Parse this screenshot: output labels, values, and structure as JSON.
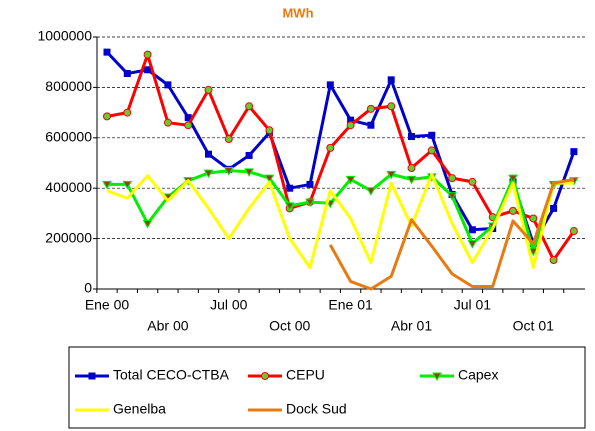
{
  "chart_data": {
    "type": "line",
    "subtitle": "MWh",
    "categories": [
      "Ene 00",
      null,
      null,
      "Abr 00",
      null,
      null,
      "Jul 00",
      null,
      null,
      "Oct 00",
      null,
      null,
      "Ene 01",
      null,
      null,
      "Abr 01",
      null,
      null,
      "Jul 01",
      null,
      null,
      "Oct 01",
      null,
      null
    ],
    "series": [
      {
        "name": "Total CECO-CTBA",
        "color": "#0000cc",
        "marker": "square",
        "values": [
          940000,
          855000,
          870000,
          810000,
          680000,
          535000,
          475000,
          530000,
          620000,
          400000,
          415000,
          810000,
          670000,
          650000,
          830000,
          605000,
          610000,
          375000,
          235000,
          240000,
          425000,
          180000,
          320000,
          545000
        ]
      },
      {
        "name": "CEPU",
        "color": "#ff0000",
        "marker": "circle",
        "values": [
          685000,
          700000,
          930000,
          660000,
          650000,
          790000,
          595000,
          725000,
          630000,
          320000,
          345000,
          560000,
          650000,
          715000,
          725000,
          480000,
          550000,
          440000,
          425000,
          285000,
          310000,
          280000,
          115000,
          230000
        ]
      },
      {
        "name": "Capex",
        "color": "#00ee00",
        "marker": "triangle",
        "values": [
          415000,
          415000,
          260000,
          365000,
          430000,
          460000,
          470000,
          465000,
          440000,
          330000,
          345000,
          340000,
          435000,
          390000,
          455000,
          435000,
          445000,
          370000,
          180000,
          250000,
          440000,
          150000,
          415000,
          430000
        ]
      },
      {
        "name": "Genelba",
        "color": "#ffff00",
        "marker": "none",
        "values": [
          390000,
          360000,
          450000,
          350000,
          430000,
          320000,
          200000,
          320000,
          425000,
          200000,
          85000,
          390000,
          280000,
          105000,
          420000,
          250000,
          455000,
          260000,
          105000,
          240000,
          420000,
          85000,
          420000,
          420000
        ]
      },
      {
        "name": "Dock Sud",
        "color": "#e87a12",
        "marker": "none",
        "values": [
          null,
          null,
          null,
          null,
          null,
          null,
          null,
          null,
          null,
          null,
          null,
          175000,
          30000,
          0,
          50000,
          275000,
          170000,
          60000,
          10000,
          10000,
          270000,
          180000,
          420000,
          435000
        ]
      }
    ],
    "ylim": [
      0,
      1000000
    ],
    "yticks": [
      0,
      200000,
      400000,
      600000,
      800000,
      1000000
    ],
    "grid": true
  }
}
